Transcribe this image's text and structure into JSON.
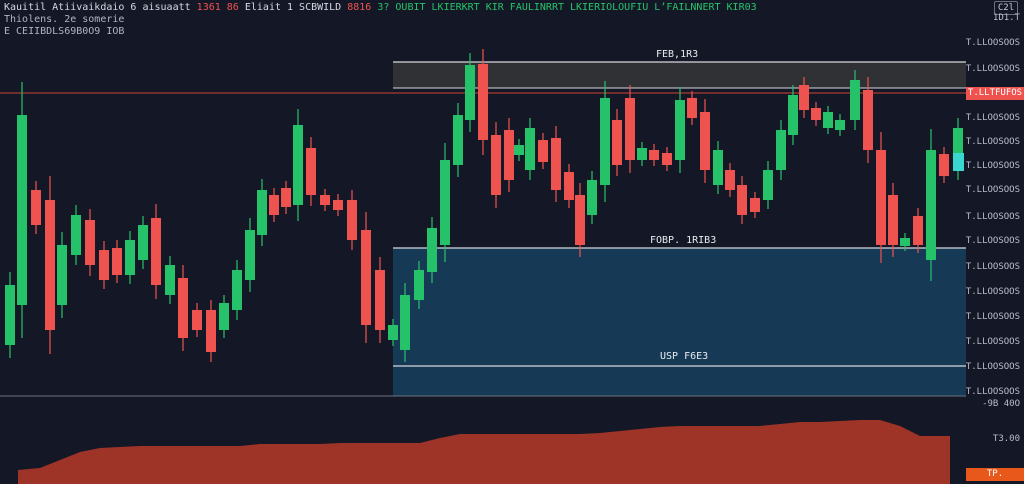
{
  "header": {
    "line1_symbol": "Kauitil Atiivaikdaio 6 aisuaatt",
    "line1_change": "1361 86",
    "line1_desc": "Eliait 1 SCBWILD",
    "line1_val": "8816",
    "line1_stats": "3? OUBIT LKIERKRT KIR FAULINRRT LKIERIOLOUFIU L’FAILNNERT KIR03",
    "line2": "Thiolens. 2e somerie",
    "line3": "E CEIIBDLS69B0O9 IOB"
  },
  "zones": {
    "upper_label": "FEB,1R3",
    "middle_label": "FOBP. 1RIB3",
    "lower_label": "USP F6E3"
  },
  "price_axis": {
    "top_button": "C2l",
    "ticks": [
      {
        "label": "1D1.T",
        "y": 19
      },
      {
        "label": "T.LLOOSOOS",
        "y": 44
      },
      {
        "label": "T.LLOOSOOS",
        "y": 70
      },
      {
        "label": "T.LLOOSOOS",
        "y": 119
      },
      {
        "label": "T.LLOOSOOS",
        "y": 143
      },
      {
        "label": "T.LLOOSOOS",
        "y": 167
      },
      {
        "label": "T.LLOOSOOS",
        "y": 191
      },
      {
        "label": "T.LLOOSOOS",
        "y": 218
      },
      {
        "label": "T.LLOOSOOS",
        "y": 242
      },
      {
        "label": "T.LLOOSOOS",
        "y": 268
      },
      {
        "label": "T.LLOOSOOS",
        "y": 293
      },
      {
        "label": "T.LLOOSOOS",
        "y": 318
      },
      {
        "label": "T.LLOOSOOS",
        "y": 343
      },
      {
        "label": "T.LLOOSOOS",
        "y": 368
      },
      {
        "label": "T.LLOOSOOS",
        "y": 393
      },
      {
        "label": "-9B 40O",
        "y": 405
      },
      {
        "label": "T3.00",
        "y": 440
      }
    ],
    "current_price_tag": "T.LLTFUFOS",
    "volume_tag": "TP.",
    "colors": {
      "price_tag": "#ef5350",
      "volume_tag": "#e8581a"
    }
  },
  "colors": {
    "bg": "#141826",
    "up": "#26c26a",
    "down": "#ef5350",
    "resistance_zone": "#2f3135",
    "support_zone": "#163a55",
    "volume_area": "#9e3328"
  }
}
